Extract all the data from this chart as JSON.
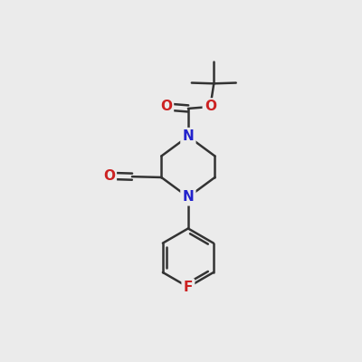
{
  "bg_color": "#ebebeb",
  "bond_color": "#333333",
  "N_color": "#2222cc",
  "O_color": "#cc2222",
  "F_color": "#cc2222",
  "line_width": 1.8,
  "fig_width": 4.0,
  "fig_height": 4.0,
  "xlim": [
    0,
    10
  ],
  "ylim": [
    0,
    10
  ],
  "font_size_atom": 11
}
